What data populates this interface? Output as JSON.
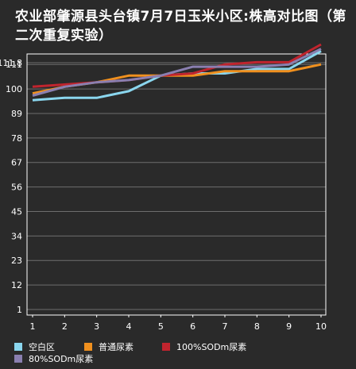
{
  "chart_data": {
    "type": "line",
    "title": "农业部肇源县头台镇7月7日玉米小区:株高对比图（第二次重复实验）",
    "xlabel": "",
    "ylabel": "",
    "x": [
      "1",
      "2",
      "3",
      "4",
      "5",
      "6",
      "7",
      "8",
      "9",
      "10"
    ],
    "y_ticks": [
      "1",
      "12",
      "23",
      "34",
      "45",
      "56",
      "67",
      "78",
      "89",
      "100",
      "111",
      "111.8"
    ],
    "grid": true,
    "legend_position": "bottom",
    "series": [
      {
        "name": "空白区",
        "color": "#8ad6ee",
        "values": [
          95,
          96,
          96,
          99,
          106,
          107,
          107,
          109,
          109,
          117
        ]
      },
      {
        "name": "普通尿素",
        "color": "#f0901e",
        "values": [
          98,
          101,
          103,
          106,
          106,
          106,
          108,
          108,
          108,
          111
        ]
      },
      {
        "name": "100%SODm尿素",
        "color": "#c0242e",
        "values": [
          101,
          102,
          103,
          104,
          106,
          107,
          111,
          112,
          112,
          120
        ]
      },
      {
        "name": "80%SODm尿素",
        "color": "#8a7fb0",
        "values": [
          97,
          101,
          103,
          104,
          106,
          110,
          110,
          110,
          111,
          118
        ]
      }
    ]
  }
}
